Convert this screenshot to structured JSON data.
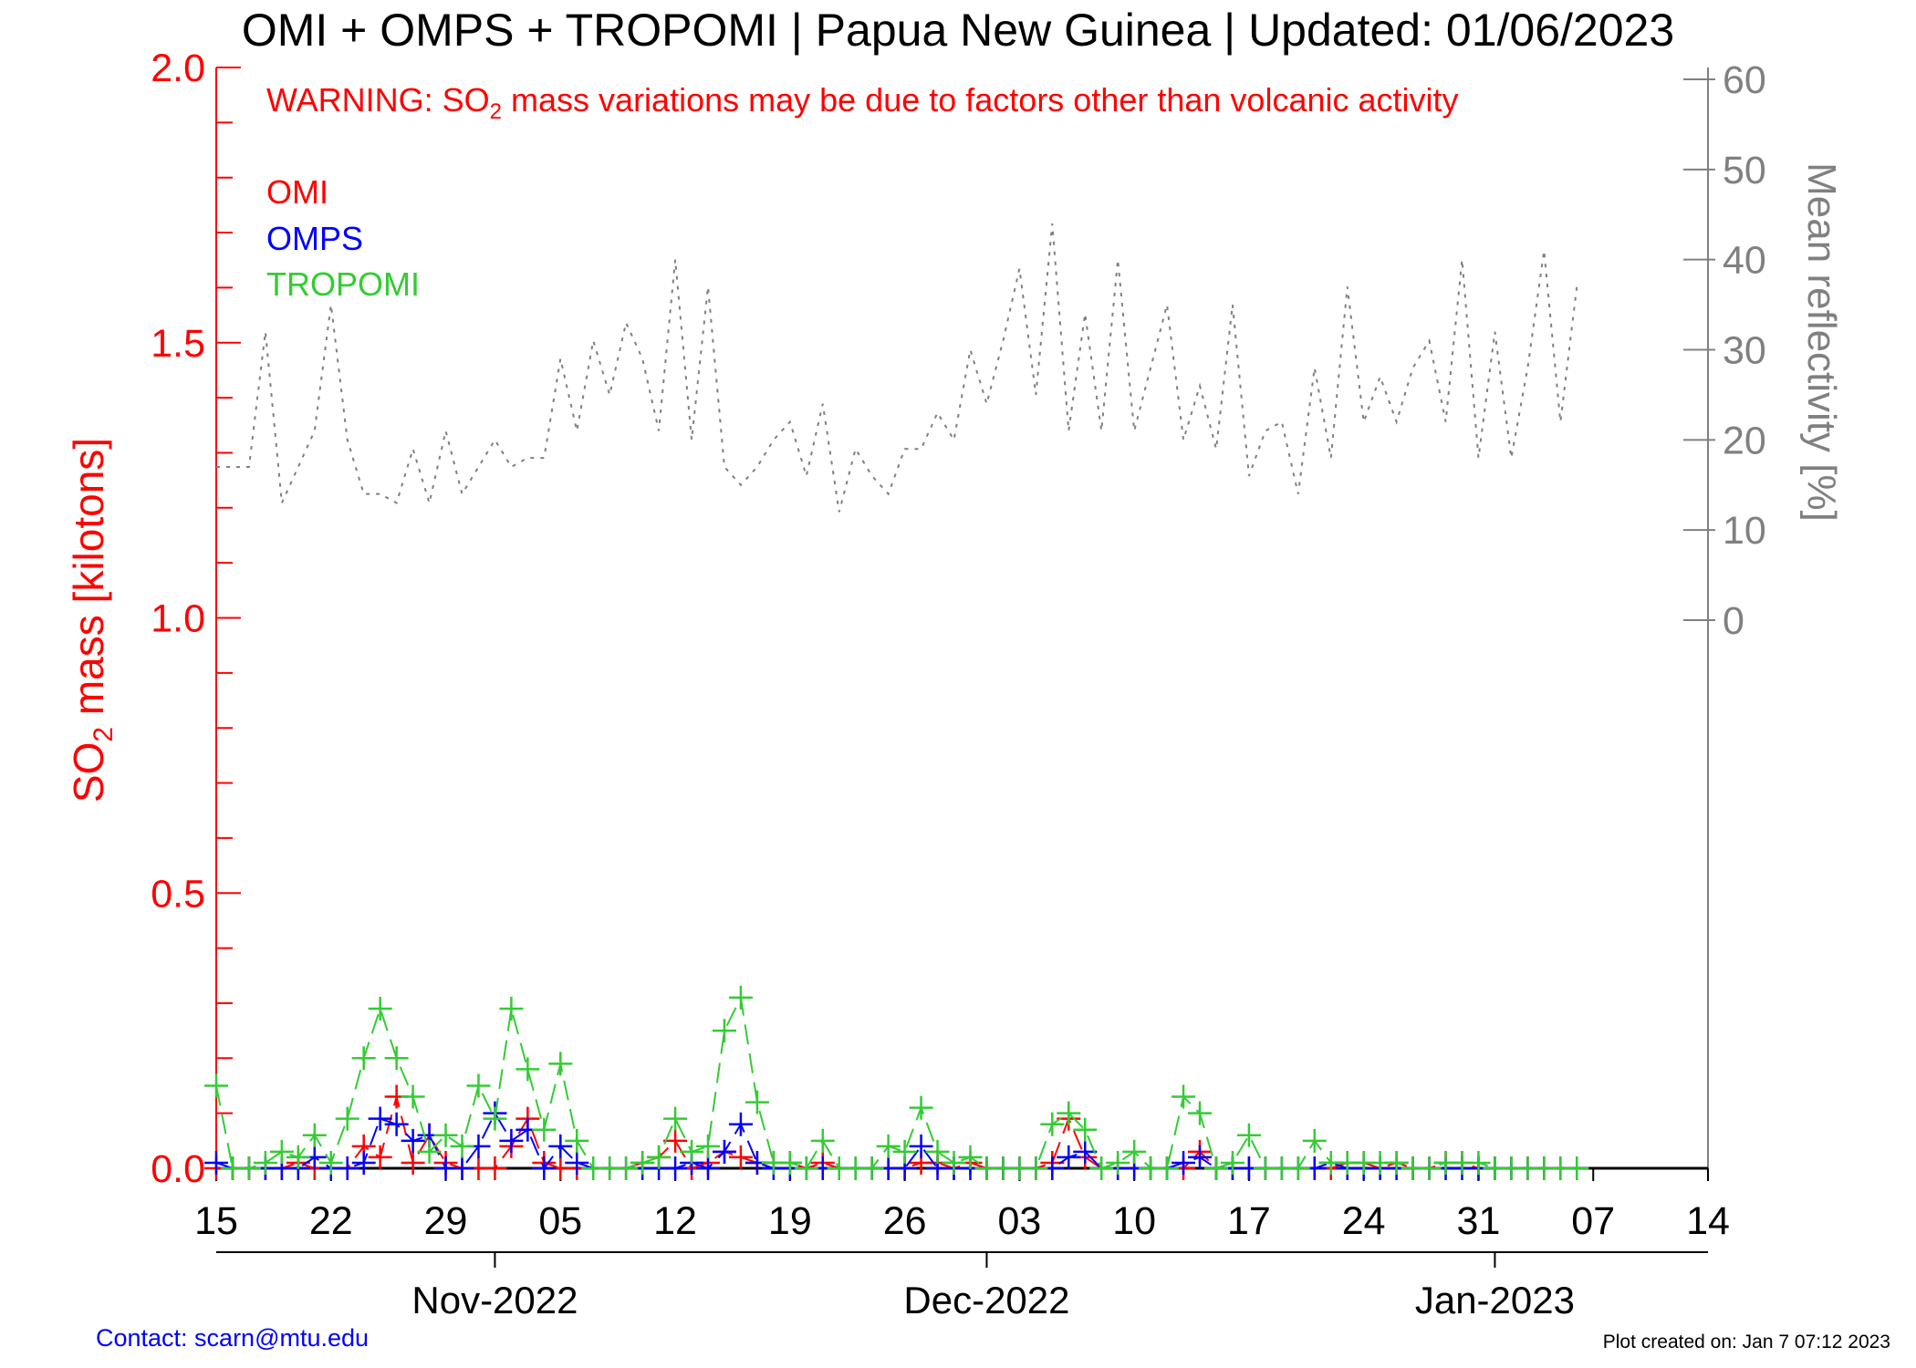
{
  "chart_data": {
    "type": "line",
    "title": "OMI + OMPS + TROPOMI | Papua New Guinea | Updated: 01/06/2023",
    "warning": {
      "pre": "WARNING: SO",
      "sub": "2",
      "post": " mass variations may be due to factors other than volcanic activity"
    },
    "ylabel": {
      "pre": "SO",
      "sub": "2",
      "post": " mass [kilotons]"
    },
    "y2label": "Mean reflectivity [%]",
    "ylim": [
      0,
      2.0
    ],
    "y2lim": [
      0,
      60
    ],
    "y_ticks": [
      "0.0",
      "0.5",
      "1.0",
      "1.5",
      "2.0"
    ],
    "y2_ticks": [
      "0",
      "10",
      "20",
      "30",
      "40",
      "50",
      "60"
    ],
    "x_start": "2022-10-15",
    "x_range_days": [
      0,
      91
    ],
    "x_ticks": [
      "15",
      "22",
      "29",
      "05",
      "12",
      "19",
      "26",
      "03",
      "10",
      "17",
      "24",
      "31",
      "07",
      "14"
    ],
    "months": [
      {
        "label": "Nov-2022",
        "day": 17
      },
      {
        "label": "Dec-2022",
        "day": 47
      },
      {
        "label": "Jan-2023",
        "day": 78
      }
    ],
    "legend": {
      "placement": "top-left",
      "entries": [
        "OMI",
        "OMPS",
        "TROPOMI"
      ]
    },
    "series": [
      {
        "name": "OMI",
        "color": "#ff0000",
        "values": [
          0,
          0,
          0,
          0,
          0,
          0.01,
          0,
          0,
          0,
          0.04,
          0.02,
          0.13,
          0.01,
          0.06,
          0.01,
          0,
          0,
          0,
          0.04,
          0.09,
          0.01,
          0,
          0,
          0,
          0,
          0,
          0.01,
          0.02,
          0.05,
          0,
          0.01,
          0.03,
          0.02,
          0.01,
          0.01,
          0.01,
          0,
          0.01,
          0,
          0,
          0,
          0,
          0,
          0.01,
          0.01,
          0,
          0.01,
          0,
          0,
          0,
          0,
          0.01,
          0.09,
          0.02,
          0,
          0,
          0,
          0,
          0,
          0,
          0.03,
          0,
          0,
          0,
          0,
          0,
          0,
          0,
          0,
          0.01,
          0.01,
          0,
          0.01,
          0,
          0,
          0.01,
          0.01,
          0,
          0,
          0,
          0,
          0,
          0,
          0
        ]
      },
      {
        "name": "OMPS",
        "color": "#0000ff",
        "values": [
          0.01,
          0,
          0,
          0,
          0,
          0,
          0.02,
          0,
          0,
          0.01,
          0.09,
          0.08,
          0.05,
          0.06,
          0,
          0,
          0.04,
          0.1,
          0.05,
          0.07,
          0,
          0.04,
          0.01,
          0,
          0,
          0,
          0,
          0,
          0,
          0.01,
          0,
          0.03,
          0.08,
          0.01,
          0,
          0,
          0,
          0,
          0,
          0,
          0,
          0,
          0,
          0.04,
          0,
          0,
          0,
          0,
          0,
          0,
          0,
          0,
          0.02,
          0.03,
          0,
          0,
          0,
          0,
          0,
          0.01,
          0.02,
          0,
          0,
          0,
          0,
          0,
          0,
          0,
          0.01,
          0,
          0,
          0,
          0,
          0,
          0,
          0,
          0,
          0,
          0,
          0,
          0,
          0,
          0,
          0
        ]
      },
      {
        "name": "TROPOMI",
        "color": "#33cc33",
        "values": [
          0.15,
          0,
          0,
          0.01,
          0.03,
          0.02,
          0.06,
          0.01,
          0.09,
          0.2,
          0.29,
          0.2,
          0.13,
          0.03,
          0.06,
          0.04,
          0.15,
          0.09,
          0.29,
          0.18,
          0.07,
          0.19,
          0.05,
          0,
          0,
          0,
          0.01,
          0.02,
          0.09,
          0.03,
          0.04,
          0.25,
          0.31,
          0.12,
          0.01,
          0.01,
          0,
          0.05,
          0,
          0,
          0,
          0.04,
          0.03,
          0.11,
          0.03,
          0.01,
          0.02,
          0,
          0,
          0,
          0,
          0.08,
          0.1,
          0.07,
          0,
          0.01,
          0.03,
          0,
          0,
          0.13,
          0.1,
          0,
          0.01,
          0.06,
          0,
          0,
          0,
          0.05,
          0.01,
          0.01,
          0.01,
          0.01,
          0.01,
          0,
          0,
          0.01,
          0.01,
          0.01,
          0,
          0,
          0,
          0,
          0,
          0
        ]
      },
      {
        "name": "Mean reflectivity",
        "color": "#808080",
        "axis": "right",
        "values": [
          17,
          17,
          17,
          32,
          13,
          17,
          21,
          35,
          20,
          14,
          14,
          13,
          19,
          13,
          21,
          14,
          17,
          20,
          17,
          18,
          18,
          29,
          21,
          31,
          25,
          33,
          29,
          21,
          40,
          20,
          37,
          17,
          15,
          17,
          20,
          22,
          16,
          24,
          12,
          19,
          16,
          14,
          19,
          19,
          23,
          20,
          30,
          24,
          31,
          39,
          25,
          44,
          21,
          34,
          21,
          40,
          21,
          28,
          35,
          20,
          26,
          19,
          35,
          16,
          21,
          22,
          14,
          28,
          18,
          37,
          22,
          27,
          22,
          28,
          31,
          22,
          40,
          18,
          32,
          18,
          28,
          41,
          22,
          37
        ]
      }
    ]
  },
  "footer": {
    "contact": "Contact: scarn@mtu.edu",
    "created": "Plot created on: Jan  7 07:12 2023"
  }
}
